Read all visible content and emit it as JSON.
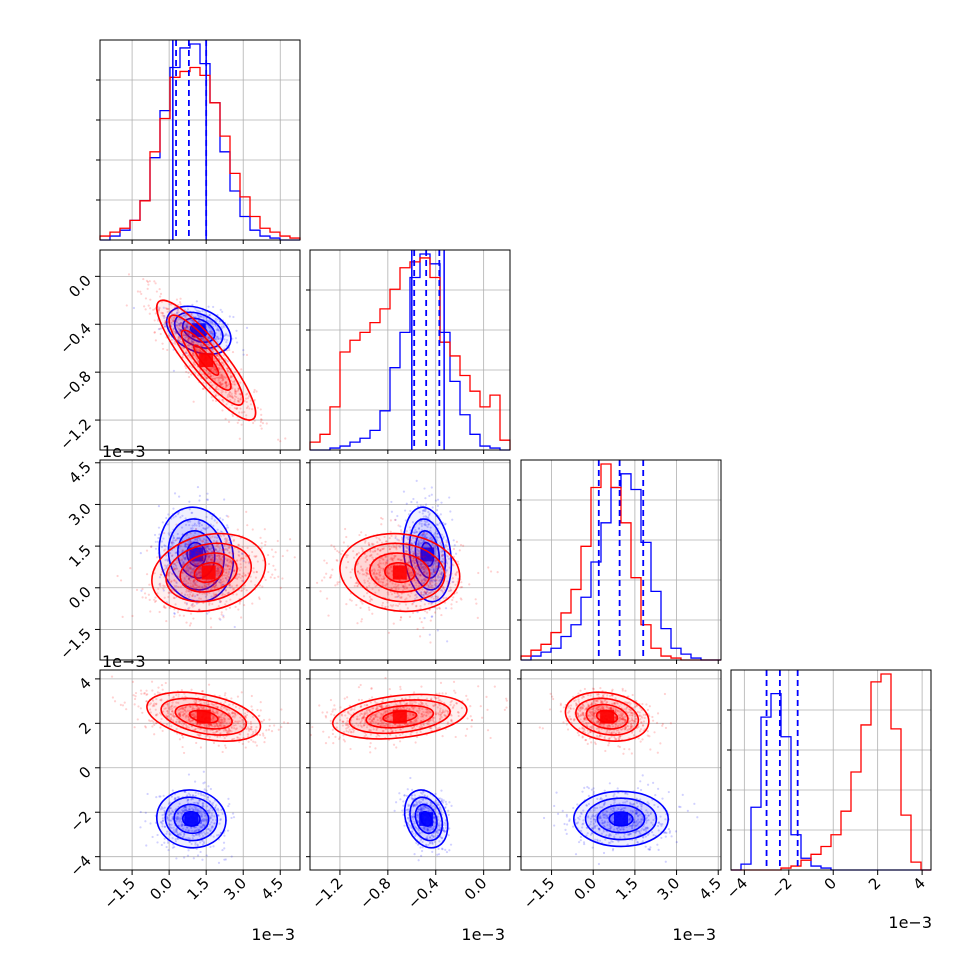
{
  "chart_data": {
    "type": "corner",
    "title": "",
    "colors": {
      "series_a": "#0000ff",
      "series_b": "#ff0000",
      "grid": "#b0b0b0"
    },
    "grid": true,
    "params": [
      {
        "range": [
          -2.8,
          5.3
        ],
        "ticks": [
          "−1.5",
          "0.0",
          "1.5",
          "3.0",
          "4.5"
        ],
        "tick_values": [
          -1.5,
          0.0,
          1.5,
          3.0,
          4.5
        ],
        "scale_label": "1e−3"
      },
      {
        "range": [
          -1.45,
          0.22
        ],
        "ticks": [
          "−1.2",
          "−0.8",
          "−0.4",
          "0.0"
        ],
        "tick_values": [
          -1.2,
          -0.8,
          -0.4,
          0.0
        ],
        "scale_label": "1e−3"
      },
      {
        "range": [
          -2.6,
          4.6
        ],
        "ticks": [
          "−1.5",
          "0.0",
          "1.5",
          "3.0",
          "4.5"
        ],
        "tick_values": [
          -1.5,
          0.0,
          1.5,
          3.0,
          4.5
        ],
        "scale_label": "1e−3"
      },
      {
        "range": [
          -4.6,
          4.4
        ],
        "ticks": [
          "−4",
          "−2",
          "0",
          "2",
          "4"
        ],
        "tick_values": [
          -4,
          -2,
          0,
          2,
          4
        ],
        "scale_label": "1e−3"
      }
    ],
    "histograms": [
      {
        "param": 0,
        "edges_start": -2.8,
        "bin_width": 0.405,
        "series": [
          {
            "color": "series_a",
            "counts": [
              0,
              0.02,
              0.05,
              0.1,
              0.2,
              0.42,
              0.66,
              0.88,
              0.98,
              1.0,
              0.9,
              0.7,
              0.45,
              0.25,
              0.12,
              0.05,
              0.02,
              0.01,
              0,
              0
            ]
          },
          {
            "color": "series_b",
            "counts": [
              0.02,
              0.04,
              0.06,
              0.1,
              0.2,
              0.45,
              0.62,
              0.83,
              0.86,
              0.88,
              0.84,
              0.7,
              0.53,
              0.34,
              0.22,
              0.12,
              0.06,
              0.04,
              0.02,
              0.01
            ]
          }
        ],
        "quantiles": [
          0.28,
          0.8,
          1.5
        ],
        "truths": [
          0.15,
          1.5
        ]
      },
      {
        "param": 1,
        "edges_start": -1.45,
        "bin_width": 0.0835,
        "series": [
          {
            "color": "series_a",
            "counts": [
              0,
              0,
              0.01,
              0.02,
              0.04,
              0.06,
              0.1,
              0.2,
              0.42,
              0.6,
              0.88,
              1.0,
              0.95,
              0.6,
              0.35,
              0.18,
              0.08,
              0.02,
              0.01,
              0
            ]
          },
          {
            "color": "series_b",
            "counts": [
              0.04,
              0.08,
              0.22,
              0.5,
              0.56,
              0.6,
              0.65,
              0.72,
              0.82,
              0.93,
              0.96,
              0.98,
              0.88,
              0.55,
              0.48,
              0.38,
              0.3,
              0.22,
              0.28,
              0.05
            ]
          }
        ],
        "quantiles": [
          -0.58,
          -0.48,
          -0.37
        ],
        "truths": [
          -0.6,
          -0.33
        ]
      },
      {
        "param": 2,
        "edges_start": -2.6,
        "bin_width": 0.36,
        "series": [
          {
            "color": "series_a",
            "counts": [
              0,
              0.02,
              0.04,
              0.06,
              0.12,
              0.18,
              0.32,
              0.5,
              0.7,
              0.88,
              0.95,
              0.87,
              0.6,
              0.35,
              0.16,
              0.06,
              0.03,
              0.01,
              0,
              0
            ]
          },
          {
            "color": "series_b",
            "counts": [
              0.02,
              0.05,
              0.08,
              0.14,
              0.24,
              0.36,
              0.58,
              0.88,
              1.0,
              0.88,
              0.7,
              0.42,
              0.18,
              0.06,
              0.02,
              0.01,
              0,
              0,
              0,
              0
            ]
          }
        ],
        "quantiles": [
          0.2,
          0.95,
          1.8
        ],
        "truths": []
      },
      {
        "param": 3,
        "edges_start": -4.6,
        "bin_width": 0.45,
        "series": [
          {
            "color": "series_a",
            "counts": [
              0,
              0.03,
              0.32,
              0.78,
              0.9,
              0.68,
              0.18,
              0.06,
              0.02,
              0.01,
              0,
              0,
              0,
              0,
              0,
              0,
              0,
              0,
              0,
              0
            ]
          },
          {
            "color": "series_b",
            "counts": [
              0,
              0,
              0,
              0,
              0,
              0.01,
              0.02,
              0.05,
              0.08,
              0.12,
              0.18,
              0.3,
              0.5,
              0.74,
              0.96,
              1.0,
              0.72,
              0.28,
              0.04,
              0
            ]
          }
        ],
        "quantiles": [
          -3.0,
          -2.4,
          -1.6
        ],
        "truths": []
      }
    ],
    "pairs": [
      {
        "x": 0,
        "y": 1,
        "series": [
          {
            "color": "series_a",
            "mean": [
              1.2,
              -0.45
            ],
            "sd": [
              0.65,
              0.1
            ],
            "rho": -0.35,
            "count": 550
          },
          {
            "color": "series_b",
            "mean": [
              1.5,
              -0.7
            ],
            "sd": [
              1.0,
              0.25
            ],
            "rho": -0.88,
            "count": 800
          }
        ]
      },
      {
        "x": 0,
        "y": 2,
        "series": [
          {
            "color": "series_a",
            "mean": [
              1.1,
              1.2
            ],
            "sd": [
              0.75,
              0.85
            ],
            "rho": -0.1,
            "count": 550
          },
          {
            "color": "series_b",
            "mean": [
              1.6,
              0.55
            ],
            "sd": [
              1.15,
              0.7
            ],
            "rho": 0.2,
            "count": 800
          }
        ]
      },
      {
        "x": 1,
        "y": 2,
        "series": [
          {
            "color": "series_a",
            "mean": [
              -0.47,
              1.2
            ],
            "sd": [
              0.1,
              0.85
            ],
            "rho": -0.2,
            "count": 550
          },
          {
            "color": "series_b",
            "mean": [
              -0.7,
              0.55
            ],
            "sd": [
              0.25,
              0.7
            ],
            "rho": -0.1,
            "count": 800
          }
        ]
      },
      {
        "x": 0,
        "y": 3,
        "series": [
          {
            "color": "series_a",
            "mean": [
              0.9,
              -2.3
            ],
            "sd": [
              0.7,
              0.65
            ],
            "rho": -0.05,
            "count": 550
          },
          {
            "color": "series_b",
            "mean": [
              1.4,
              2.3
            ],
            "sd": [
              1.15,
              0.55
            ],
            "rho": -0.4,
            "count": 800
          }
        ]
      },
      {
        "x": 1,
        "y": 3,
        "series": [
          {
            "color": "series_a",
            "mean": [
              -0.48,
              -2.3
            ],
            "sd": [
              0.09,
              0.65
            ],
            "rho": -0.25,
            "count": 550
          },
          {
            "color": "series_b",
            "mean": [
              -0.7,
              2.3
            ],
            "sd": [
              0.28,
              0.5
            ],
            "rho": 0.3,
            "count": 800
          }
        ]
      },
      {
        "x": 2,
        "y": 3,
        "series": [
          {
            "color": "series_a",
            "mean": [
              1.0,
              -2.3
            ],
            "sd": [
              0.85,
              0.62
            ],
            "rho": 0.0,
            "count": 550
          },
          {
            "color": "series_b",
            "mean": [
              0.5,
              2.3
            ],
            "sd": [
              0.75,
              0.55
            ],
            "rho": -0.2,
            "count": 800
          }
        ]
      }
    ]
  }
}
